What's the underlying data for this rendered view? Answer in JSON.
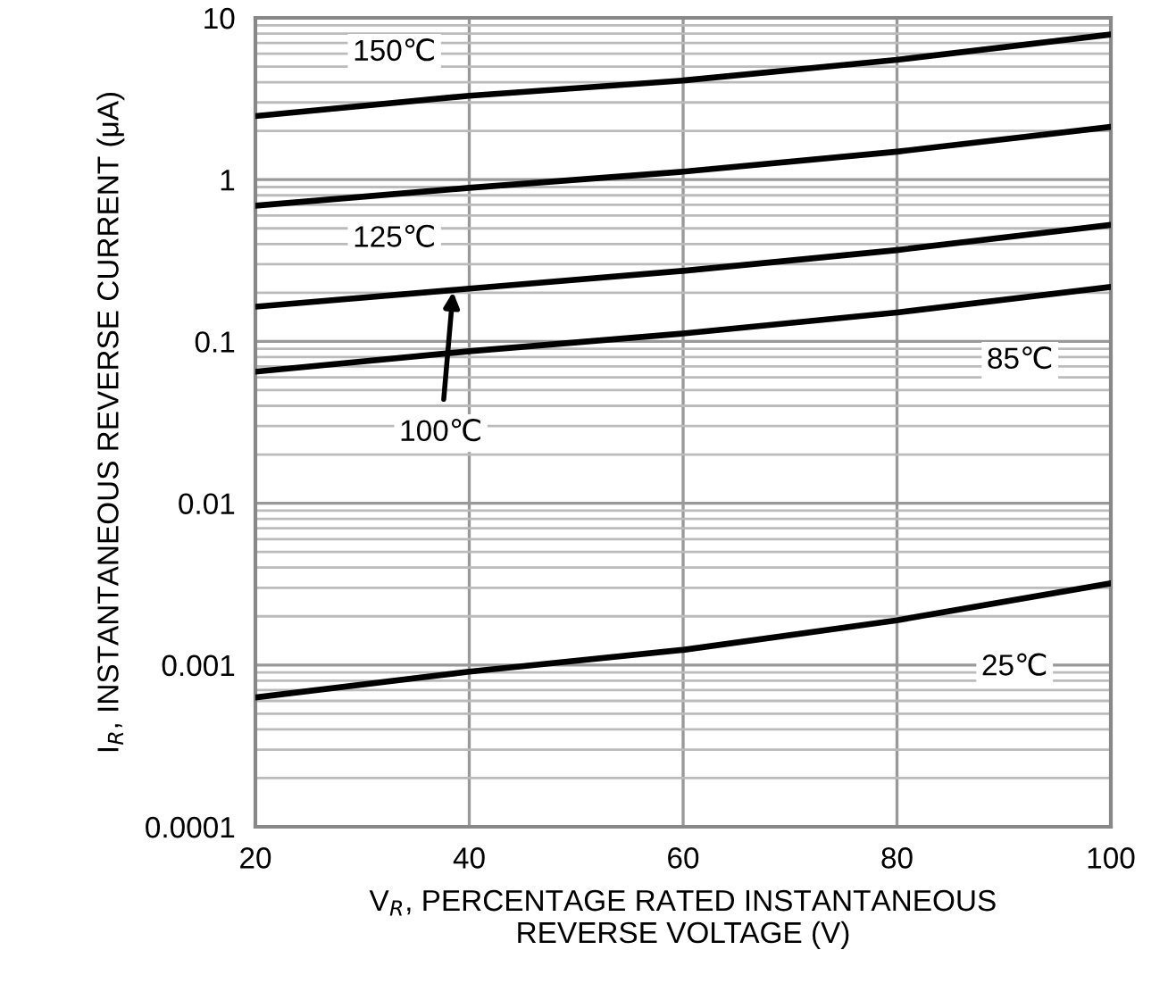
{
  "chart_data": {
    "type": "line",
    "xlabel": "V$_{R}$, PERCENTAGE RATED INSTANTANEOUS\nREVERSE VOLTAGE (V)",
    "ylabel": "I$_{R}$, INSTANTANEOUS REVERSE CURRENT (μA)",
    "x": [
      20,
      40,
      60,
      80,
      100
    ],
    "series": [
      {
        "color": "#000000",
        "values": [
          2.47,
          3.3,
          4.1,
          5.5,
          7.9
        ]
      },
      {
        "color": "#000000",
        "values": [
          0.69,
          0.89,
          1.12,
          1.49,
          2.12
        ]
      },
      {
        "color": "#000000",
        "values": [
          0.164,
          0.212,
          0.273,
          0.367,
          0.525
        ]
      },
      {
        "color": "#000000",
        "values": [
          0.065,
          0.087,
          0.112,
          0.151,
          0.217
        ]
      },
      {
        "color": "#000000",
        "values": [
          0.00063,
          0.00091,
          0.00124,
          0.00189,
          0.0032
        ]
      }
    ],
    "annotations": [
      {
        "text": "150℃",
        "x": 33,
        "y": 3
      },
      {
        "text": "125℃",
        "x": 33,
        "y": 0.81
      },
      {
        "text": "100℃",
        "x": 38.5,
        "y": 0.21
      },
      {
        "text": "85℃",
        "x": 91.5,
        "y": 0.19
      },
      {
        "text": "25℃",
        "x": 91,
        "y": 0.0025
      }
    ],
    "log": "y",
    "xlim": [
      20,
      100
    ],
    "xticks": [
      20,
      40,
      60,
      80,
      100
    ],
    "ylim": [
      0.0001,
      10
    ],
    "yticks": [
      0.0001,
      0.001,
      0.01,
      0.1,
      1,
      10
    ],
    "grid": true,
    "line_style": "solid",
    "marker": "none"
  }
}
